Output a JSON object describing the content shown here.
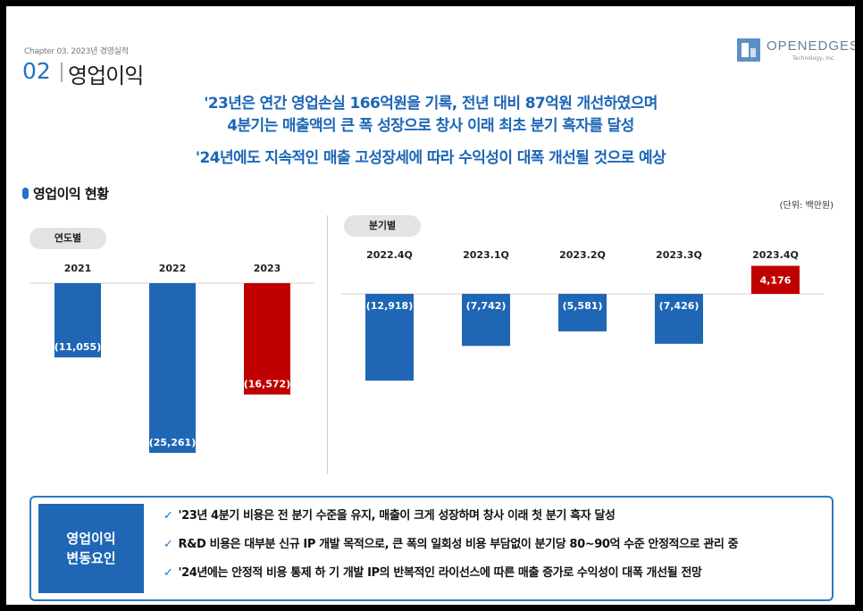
{
  "header": {
    "chapter": "Chapter 03. 2023년 경영실적",
    "section_number": "02",
    "section_title": "영업이익",
    "logo_text": "OPENEDGES",
    "logo_sub": "Technology, Inc."
  },
  "headlines": [
    "'23년은 연간 영업손실 166억원을 기록, 전년 대비 87억원 개선하였으며",
    "4분기는 매출액의 큰 폭 성장으로 창사 이래 최초 분기 흑자를 달성",
    "'24년에도 지속적인 매출 고성장세에 따라 수익성이 대폭 개선될 것으로 예상"
  ],
  "subsection": {
    "title": "영업이익 현황",
    "unit": "(단위: 백만원)"
  },
  "colors": {
    "positive_accent": "#1f74c9",
    "bar_blue": "#1f67b5",
    "bar_red": "#c00000"
  },
  "chart_data": [
    {
      "type": "bar",
      "title": "연도별",
      "categories": [
        "2021",
        "2022",
        "2023"
      ],
      "values": [
        -11055,
        -25261,
        -16572
      ],
      "labels": [
        "(11,055)",
        "(25,261)",
        "(16,572)"
      ],
      "colors": [
        "#1f67b5",
        "#1f67b5",
        "#c00000"
      ],
      "ylim": [
        -27000,
        0
      ]
    },
    {
      "type": "bar",
      "title": "분기별",
      "categories": [
        "2022.4Q",
        "2023.1Q",
        "2023.2Q",
        "2023.3Q",
        "2023.4Q"
      ],
      "values": [
        -12918,
        -7742,
        -5581,
        -7426,
        4176
      ],
      "labels": [
        "(12,918)",
        "(7,742)",
        "(5,581)",
        "(7,426)",
        "4,176"
      ],
      "colors": [
        "#1f67b5",
        "#1f67b5",
        "#1f67b5",
        "#1f67b5",
        "#c00000"
      ],
      "ylim": [
        -27000,
        5000
      ]
    }
  ],
  "factors": {
    "label_line1": "영업이익",
    "label_line2": "변동요인",
    "items": [
      "'23년 4분기 비용은 전 분기 수준을 유지, 매출이 크게 성장하며 창사 이래 첫 분기 흑자 달성",
      "R&D 비용은 대부분 신규 IP 개발 목적으로, 큰 폭의 일회성 비용 부담없이 분기당 80~90억 수준 안정적으로 관리 중",
      "'24년에는 안정적 비용 통제 하 기 개발 IP의 반복적인 라이선스에 따른 매출 증가로 수익성이 대폭 개선될 전망"
    ]
  }
}
